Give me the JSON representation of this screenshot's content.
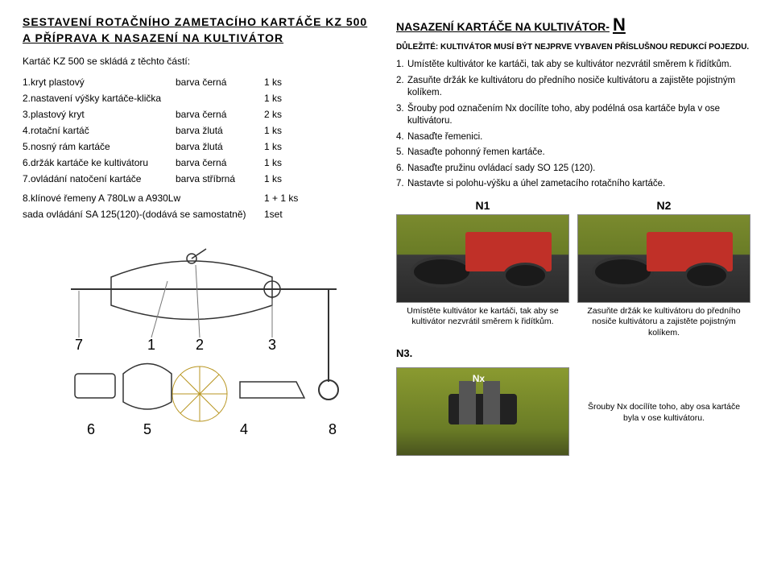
{
  "left": {
    "heading": "SESTAVENÍ ROTAČNÍHO ZAMETACÍHO KARTÁČE KZ 500 A PŘÍPRAVA K NASAZENÍ NA KULTIVÁTOR",
    "subtext": "Kartáč KZ 500 se skládá z těchto částí:",
    "parts": [
      {
        "name": "1.kryt plastový",
        "color": "barva černá",
        "qty": "1 ks"
      },
      {
        "name": "2.nastavení výšky kartáče-klička",
        "color": "",
        "qty": "1 ks"
      },
      {
        "name": "3.plastový kryt",
        "color": "barva černá",
        "qty": "2 ks"
      },
      {
        "name": "4.rotační kartáč",
        "color": "barva žlutá",
        "qty": "1 ks"
      },
      {
        "name": "5.nosný rám kartáče",
        "color": "barva žlutá",
        "qty": "1 ks"
      },
      {
        "name": "6.držák kartáče ke kultivátoru",
        "color": "barva černá",
        "qty": "1 ks"
      },
      {
        "name": "7.ovládání natočení kartáče",
        "color": "barva stříbrná",
        "qty": "1 ks"
      }
    ],
    "extra1": {
      "name": "8.klínové řemeny     A 780Lw a A930Lw",
      "qty": "1 + 1 ks"
    },
    "extra2": {
      "name": "sada ovládání SA 125(120)-(dodává se samostatně)",
      "qty": "1set"
    },
    "diagram_numbers": [
      "7",
      "1",
      "2",
      "3",
      "6",
      "5",
      "4",
      "8"
    ]
  },
  "right": {
    "heading": "NASAZENÍ KARTÁČE NA KULTIVÁTOR-",
    "heading_suffix": "N",
    "important": "DŮLEŽITÉ: KULTIVÁTOR MUSÍ BÝT NEJPRVE VYBAVEN PŘÍSLUŠNOU REDUKCÍ POJEZDU.",
    "steps": [
      {
        "n": "1.",
        "t": "Umístěte kultivátor ke kartáči, tak aby   se kultivátor nezvrátil směrem k řidítkům."
      },
      {
        "n": "2.",
        "t": "Zasuňte držák ke kultivátoru do předního nosiče kultivátoru  a zajistěte pojistným kolíkem."
      },
      {
        "n": "3.",
        "t": "Šrouby  pod označením Nx docílíte toho, aby podélná osa kartáče byla v ose kultivátoru."
      },
      {
        "n": "4.",
        "t": "Nasaďte řemenici."
      },
      {
        "n": "5.",
        "t": "Nasaďte pohonný řemen kartáče."
      },
      {
        "n": "6.",
        "t": "Nasaďte pružinu ovládací sady SO 125 (120)."
      },
      {
        "n": "7.",
        "t": "Nastavte si polohu-výšku a úhel zametacího rotačního kartáče."
      }
    ],
    "figs_top": [
      {
        "label": "N1",
        "caption": "Umístěte kultivátor ke kartáči, tak aby se kultivátor nezvrátil směrem k řidítkům."
      },
      {
        "label": "N2",
        "caption": "Zasuňte držák ke kultivátoru do předního nosiče kultivátoru a zajistěte pojistným kolíkem."
      }
    ],
    "n3_label": "N3.",
    "n3_caption": "Šrouby Nx docílíte toho, aby osa kartáče byla v ose kultivátoru."
  },
  "colors": {
    "text": "#000000",
    "bg": "#ffffff",
    "grass": "#7a8a2e",
    "metal": "#3a3a3a",
    "brush": "#e8c948"
  }
}
